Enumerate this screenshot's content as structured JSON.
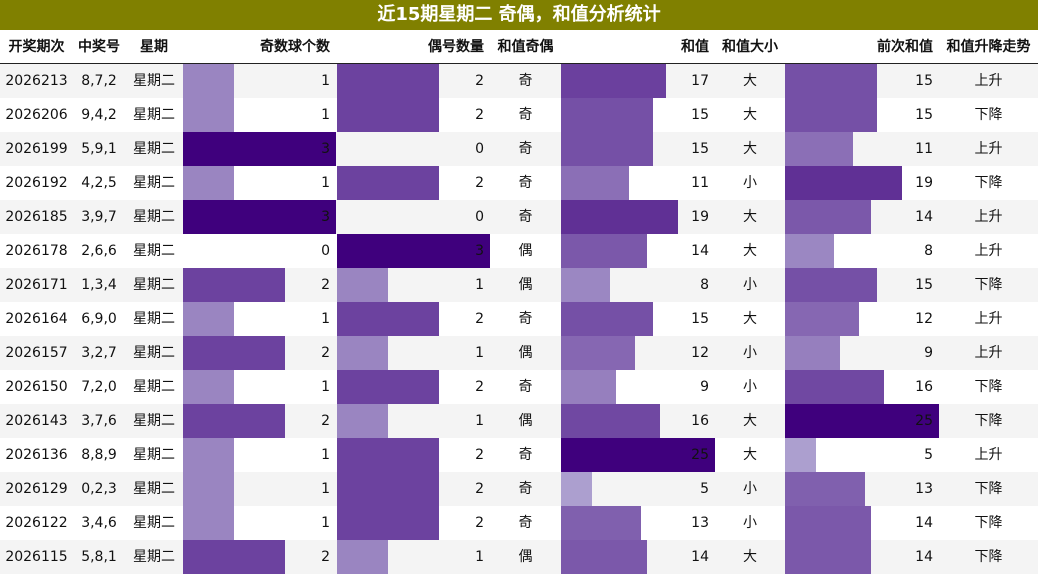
{
  "title": "近15期星期二 奇偶，和值分析统计",
  "headers": [
    "开奖期次",
    "中奖号",
    "星期",
    "奇数球个数",
    "偶号数量",
    "和值奇偶",
    "和值",
    "和值大小",
    "前次和值",
    "和值升降走势"
  ],
  "colors": {
    "title_bg": "#808000",
    "max_bar": "#3f007d",
    "bar_light": "#c7c7e3"
  },
  "rows": [
    {
      "issue": "2026213",
      "numbers": "8,7,2",
      "weekday": "星期二",
      "odd": 1,
      "even": 2,
      "sum_parity": "奇",
      "sum": 17,
      "size": "大",
      "prev_sum": 15,
      "trend": "上升"
    },
    {
      "issue": "2026206",
      "numbers": "9,4,2",
      "weekday": "星期二",
      "odd": 1,
      "even": 2,
      "sum_parity": "奇",
      "sum": 15,
      "size": "大",
      "prev_sum": 15,
      "trend": "下降"
    },
    {
      "issue": "2026199",
      "numbers": "5,9,1",
      "weekday": "星期二",
      "odd": 3,
      "even": 0,
      "sum_parity": "奇",
      "sum": 15,
      "size": "大",
      "prev_sum": 11,
      "trend": "上升"
    },
    {
      "issue": "2026192",
      "numbers": "4,2,5",
      "weekday": "星期二",
      "odd": 1,
      "even": 2,
      "sum_parity": "奇",
      "sum": 11,
      "size": "小",
      "prev_sum": 19,
      "trend": "下降"
    },
    {
      "issue": "2026185",
      "numbers": "3,9,7",
      "weekday": "星期二",
      "odd": 3,
      "even": 0,
      "sum_parity": "奇",
      "sum": 19,
      "size": "大",
      "prev_sum": 14,
      "trend": "上升"
    },
    {
      "issue": "2026178",
      "numbers": "2,6,6",
      "weekday": "星期二",
      "odd": 0,
      "even": 3,
      "sum_parity": "偶",
      "sum": 14,
      "size": "大",
      "prev_sum": 8,
      "trend": "上升"
    },
    {
      "issue": "2026171",
      "numbers": "1,3,4",
      "weekday": "星期二",
      "odd": 2,
      "even": 1,
      "sum_parity": "偶",
      "sum": 8,
      "size": "小",
      "prev_sum": 15,
      "trend": "下降"
    },
    {
      "issue": "2026164",
      "numbers": "6,9,0",
      "weekday": "星期二",
      "odd": 1,
      "even": 2,
      "sum_parity": "奇",
      "sum": 15,
      "size": "大",
      "prev_sum": 12,
      "trend": "上升"
    },
    {
      "issue": "2026157",
      "numbers": "3,2,7",
      "weekday": "星期二",
      "odd": 2,
      "even": 1,
      "sum_parity": "偶",
      "sum": 12,
      "size": "小",
      "prev_sum": 9,
      "trend": "上升"
    },
    {
      "issue": "2026150",
      "numbers": "7,2,0",
      "weekday": "星期二",
      "odd": 1,
      "even": 2,
      "sum_parity": "奇",
      "sum": 9,
      "size": "小",
      "prev_sum": 16,
      "trend": "下降"
    },
    {
      "issue": "2026143",
      "numbers": "3,7,6",
      "weekday": "星期二",
      "odd": 2,
      "even": 1,
      "sum_parity": "偶",
      "sum": 16,
      "size": "大",
      "prev_sum": 25,
      "trend": "下降"
    },
    {
      "issue": "2026136",
      "numbers": "8,8,9",
      "weekday": "星期二",
      "odd": 1,
      "even": 2,
      "sum_parity": "奇",
      "sum": 25,
      "size": "大",
      "prev_sum": 5,
      "trend": "上升"
    },
    {
      "issue": "2026129",
      "numbers": "0,2,3",
      "weekday": "星期二",
      "odd": 1,
      "even": 2,
      "sum_parity": "奇",
      "sum": 5,
      "size": "小",
      "prev_sum": 13,
      "trend": "下降"
    },
    {
      "issue": "2026122",
      "numbers": "3,4,6",
      "weekday": "星期二",
      "odd": 1,
      "even": 2,
      "sum_parity": "奇",
      "sum": 13,
      "size": "小",
      "prev_sum": 14,
      "trend": "下降"
    },
    {
      "issue": "2026115",
      "numbers": "5,8,1",
      "weekday": "星期二",
      "odd": 2,
      "even": 1,
      "sum_parity": "偶",
      "sum": 14,
      "size": "大",
      "prev_sum": 14,
      "trend": "下降"
    }
  ]
}
